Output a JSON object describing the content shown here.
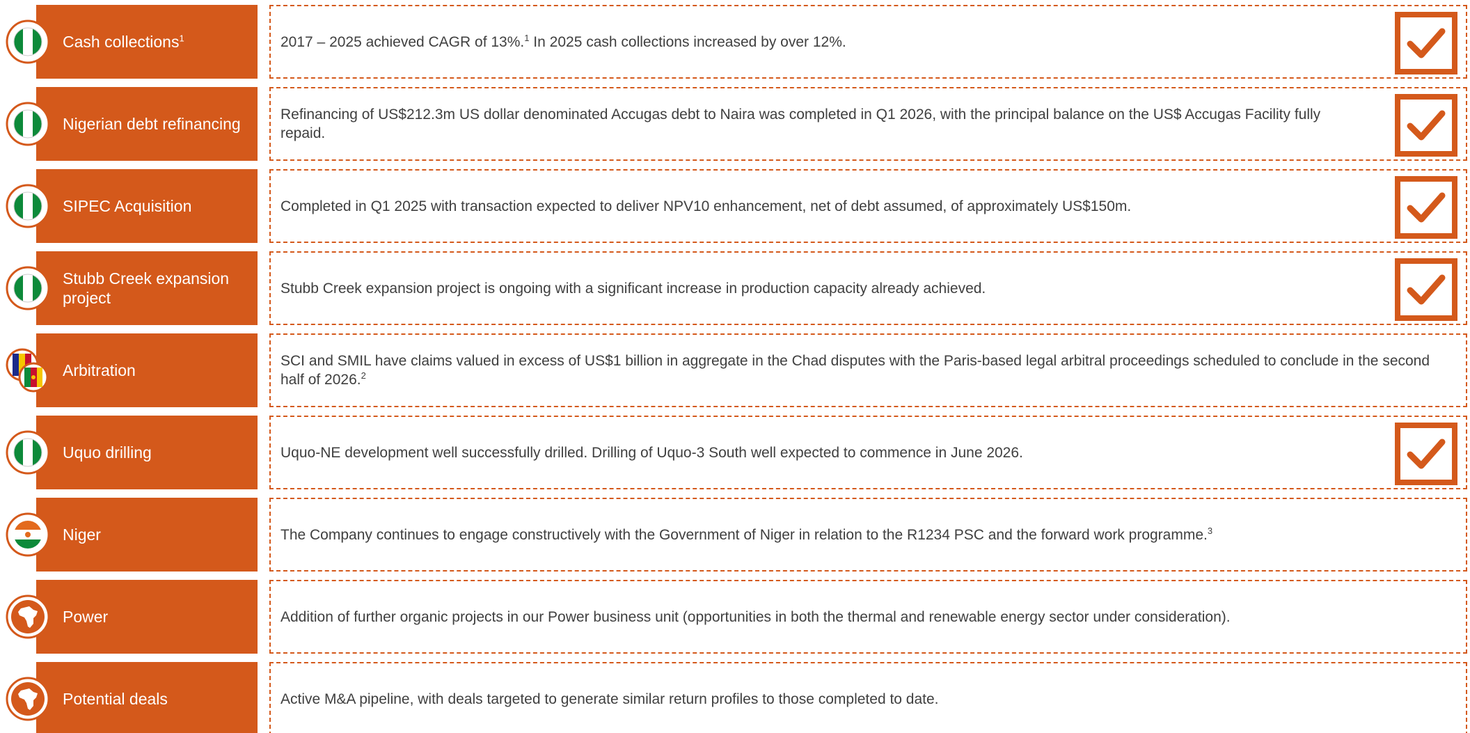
{
  "rows": [
    {
      "label": [
        "Cash collections",
        "1"
      ],
      "text": [
        "2017 – 2025 achieved CAGR of 13%.",
        "1",
        "  In 2025 cash collections increased by over 12%."
      ]
    },
    {
      "label": [
        "Nigerian debt refinancing"
      ],
      "text": [
        "Refinancing of US$212.3m US dollar denominated Accugas debt to Naira was completed in Q1 2026, with the principal balance on the US$ Accugas Facility fully repaid."
      ]
    },
    {
      "label": [
        "SIPEC Acquisition"
      ],
      "text": [
        "Completed in Q1 2025 with transaction expected to deliver NPV10 enhancement, net of debt assumed, of approximately US$150m."
      ]
    },
    {
      "label": [
        "Stubb Creek expansion project"
      ],
      "text": [
        "Stubb Creek expansion project is ongoing with a significant increase in production capacity already achieved."
      ]
    },
    {
      "label": [
        "Arbitration"
      ],
      "text": [
        "SCI and SMIL have claims valued in excess of US$1 billion in aggregate in the Chad disputes with the Paris-based legal arbitral proceedings scheduled to conclude in the second half of 2026.",
        "2"
      ]
    },
    {
      "label": [
        "Uquo drilling"
      ],
      "text": [
        "Uquo-NE development well successfully drilled. Drilling of Uquo-3 South well expected to commence in June 2026."
      ]
    },
    {
      "label": [
        "Niger"
      ],
      "text": [
        "The Company continues to engage constructively with the Government of Niger in relation to the R1234 PSC and the forward work programme.",
        "3"
      ]
    },
    {
      "label": [
        "Power"
      ],
      "text": [
        "Addition of further organic projects in our Power business unit (opportunities in both the thermal and renewable energy sector under consideration)."
      ]
    },
    {
      "label": [
        "Potential deals"
      ],
      "text": [
        "Active M&A pipeline, with deals targeted to generate similar return profiles to those completed to date."
      ]
    }
  ]
}
